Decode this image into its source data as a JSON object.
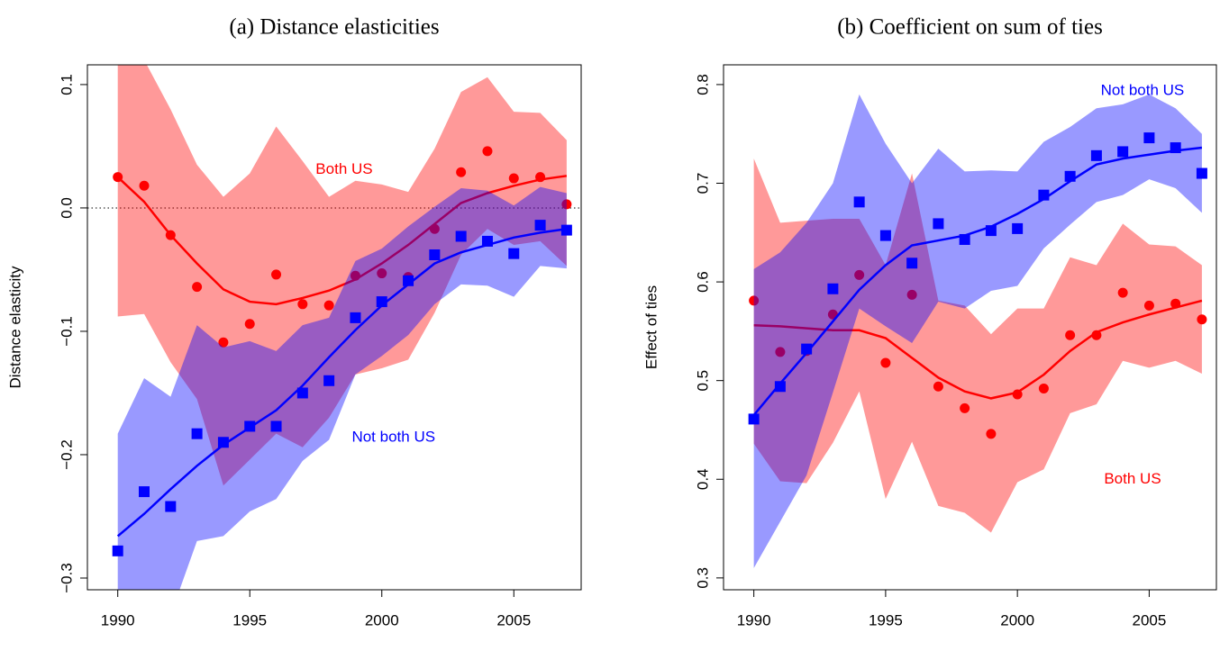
{
  "chart_data": [
    {
      "type": "line",
      "title": "(a) Distance elasticities",
      "ylabel": "Distance elasticity",
      "x": [
        1990,
        1991,
        1992,
        1993,
        1994,
        1995,
        1996,
        1997,
        1998,
        1999,
        2000,
        2001,
        2002,
        2003,
        2004,
        2005,
        2006,
        2007
      ],
      "xlim": [
        1988.85,
        2007.55
      ],
      "ylim": [
        -0.3095,
        0.116
      ],
      "xticks": [
        1990,
        1995,
        2000,
        2005
      ],
      "yticks": [
        {
          "value": -0.3,
          "label": "−0.3"
        },
        {
          "value": -0.2,
          "label": "−0.2"
        },
        {
          "value": -0.1,
          "label": "−0.1"
        },
        {
          "value": 0,
          "label": "0.0"
        },
        0.1
      ],
      "hline": 0,
      "band_opacity": 0.4,
      "series": [
        {
          "name": "Both US",
          "color": "#ff0000",
          "marker": "circle",
          "values": [
            0.025,
            0.018,
            -0.022,
            -0.064,
            -0.109,
            -0.094,
            -0.054,
            -0.078,
            -0.079,
            -0.055,
            -0.053,
            -0.056,
            -0.017,
            0.029,
            0.046,
            0.024,
            0.025,
            0.003
          ],
          "fit": [
            0.025,
            0.005,
            -0.022,
            -0.045,
            -0.066,
            -0.076,
            -0.078,
            -0.073,
            -0.067,
            -0.058,
            -0.045,
            -0.03,
            -0.013,
            0.004,
            0.012,
            0.018,
            0.023,
            0.026
          ],
          "upper": [
            0.12,
            0.12,
            0.08,
            0.035,
            0.009,
            0.028,
            0.066,
            0.038,
            0.009,
            0.022,
            0.019,
            0.013,
            0.048,
            0.094,
            0.106,
            0.078,
            0.077,
            0.055
          ],
          "lower": [
            -0.088,
            -0.086,
            -0.125,
            -0.155,
            -0.225,
            -0.204,
            -0.183,
            -0.194,
            -0.17,
            -0.135,
            -0.13,
            -0.123,
            -0.085,
            -0.038,
            -0.017,
            -0.03,
            -0.027,
            -0.047
          ]
        },
        {
          "name": "Not both US",
          "color": "#0000ff",
          "marker": "square",
          "values": [
            -0.278,
            -0.23,
            -0.242,
            -0.183,
            -0.19,
            -0.177,
            -0.177,
            -0.15,
            -0.14,
            -0.089,
            -0.076,
            -0.059,
            -0.038,
            -0.023,
            -0.027,
            -0.037,
            -0.014,
            -0.018
          ],
          "fit": [
            -0.266,
            -0.248,
            -0.228,
            -0.209,
            -0.192,
            -0.178,
            -0.164,
            -0.144,
            -0.121,
            -0.099,
            -0.079,
            -0.062,
            -0.045,
            -0.036,
            -0.03,
            -0.024,
            -0.02,
            -0.017
          ],
          "upper": [
            -0.183,
            -0.138,
            -0.153,
            -0.095,
            -0.113,
            -0.108,
            -0.116,
            -0.095,
            -0.089,
            -0.043,
            -0.033,
            -0.015,
            0.001,
            0.016,
            0.014,
            0.002,
            0.017,
            0.012
          ],
          "lower": [
            -0.37,
            -0.32,
            -0.33,
            -0.27,
            -0.266,
            -0.246,
            -0.236,
            -0.205,
            -0.188,
            -0.135,
            -0.12,
            -0.103,
            -0.078,
            -0.062,
            -0.063,
            -0.072,
            -0.047,
            -0.049
          ]
        }
      ]
    },
    {
      "type": "line",
      "title": "(b) Coefficient on sum of ties",
      "ylabel": "Effect of ties",
      "x": [
        1990,
        1991,
        1992,
        1993,
        1994,
        1995,
        1996,
        1997,
        1998,
        1999,
        2000,
        2001,
        2002,
        2003,
        2004,
        2005,
        2006,
        2007
      ],
      "xlim": [
        1988.85,
        2007.55
      ],
      "ylim": [
        0.288,
        0.82
      ],
      "xticks": [
        1990,
        1995,
        2000,
        2005
      ],
      "yticks": [
        0.3,
        0.4,
        0.5,
        0.6,
        0.7,
        0.8
      ],
      "band_opacity": 0.4,
      "series": [
        {
          "name": "Both US",
          "color": "#ff0000",
          "marker": "circle",
          "values": [
            0.581,
            0.529,
            0.53,
            0.567,
            0.607,
            0.518,
            0.587,
            0.494,
            0.472,
            0.446,
            0.486,
            0.492,
            0.546,
            0.546,
            0.589,
            0.576,
            0.578,
            0.562
          ],
          "fit": [
            0.556,
            0.555,
            0.553,
            0.551,
            0.551,
            0.543,
            0.523,
            0.503,
            0.489,
            0.482,
            0.488,
            0.506,
            0.53,
            0.549,
            0.559,
            0.567,
            0.574,
            0.581
          ],
          "upper": [
            0.725,
            0.66,
            0.662,
            0.664,
            0.664,
            0.617,
            0.71,
            0.581,
            0.576,
            0.547,
            0.573,
            0.573,
            0.625,
            0.617,
            0.659,
            0.638,
            0.636,
            0.617
          ],
          "lower": [
            0.436,
            0.398,
            0.396,
            0.437,
            0.489,
            0.38,
            0.438,
            0.373,
            0.366,
            0.346,
            0.397,
            0.41,
            0.467,
            0.476,
            0.52,
            0.513,
            0.52,
            0.507
          ]
        },
        {
          "name": "Not both US",
          "color": "#0000ff",
          "marker": "square",
          "values": [
            0.461,
            0.494,
            0.532,
            0.593,
            0.681,
            0.647,
            0.619,
            0.659,
            0.643,
            0.652,
            0.654,
            0.688,
            0.707,
            0.728,
            0.732,
            0.746,
            0.736,
            0.71
          ],
          "fit": [
            0.465,
            0.497,
            0.528,
            0.56,
            0.592,
            0.617,
            0.637,
            0.642,
            0.647,
            0.656,
            0.669,
            0.684,
            0.702,
            0.719,
            0.725,
            0.729,
            0.733,
            0.736
          ],
          "upper": [
            0.613,
            0.63,
            0.66,
            0.7,
            0.79,
            0.74,
            0.7,
            0.735,
            0.712,
            0.713,
            0.712,
            0.742,
            0.757,
            0.776,
            0.78,
            0.79,
            0.776,
            0.75
          ],
          "lower": [
            0.31,
            0.357,
            0.404,
            0.488,
            0.573,
            0.555,
            0.538,
            0.58,
            0.573,
            0.591,
            0.596,
            0.634,
            0.658,
            0.681,
            0.688,
            0.704,
            0.695,
            0.67
          ]
        }
      ]
    }
  ]
}
